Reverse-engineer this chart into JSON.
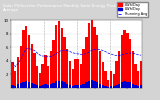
{
  "title": "Solar PV/Inverter Performance Monthly Solar Energy Production Running Average",
  "title_fontsize": 2.8,
  "bar_values": [
    3.8,
    2.5,
    4.5,
    6.2,
    8.5,
    9.1,
    7.8,
    6.5,
    5.1,
    3.2,
    2.2,
    3.5,
    4.8,
    3.2,
    5.5,
    7.1,
    9.2,
    9.8,
    8.8,
    7.5,
    5.8,
    3.9,
    2.8,
    4.2,
    4.2,
    3.5,
    5.8,
    7.5,
    9.5,
    10.1,
    9.0,
    7.8,
    5.5,
    3.8,
    2.5,
    1.2,
    2.5,
    2.0,
    4.0,
    5.5,
    7.8,
    8.5,
    8.1,
    7.2,
    5.5,
    3.5,
    2.5,
    4.0
  ],
  "small_values": [
    0.45,
    0.3,
    0.52,
    0.7,
    0.95,
    1.02,
    0.88,
    0.72,
    0.58,
    0.38,
    0.28,
    0.42,
    0.55,
    0.38,
    0.62,
    0.8,
    1.05,
    1.1,
    1.0,
    0.85,
    0.65,
    0.44,
    0.32,
    0.48,
    0.48,
    0.4,
    0.65,
    0.85,
    1.08,
    1.15,
    1.02,
    0.88,
    0.62,
    0.44,
    0.3,
    0.15,
    0.3,
    0.24,
    0.46,
    0.62,
    0.88,
    0.96,
    0.92,
    0.82,
    0.62,
    0.4,
    0.3,
    0.46
  ],
  "running_avg": [
    3.8,
    3.15,
    3.6,
    4.25,
    5.1,
    5.77,
    5.77,
    5.7,
    5.51,
    5.17,
    4.85,
    4.7,
    4.7,
    4.57,
    4.63,
    4.8,
    5.05,
    5.35,
    5.52,
    5.57,
    5.5,
    5.37,
    5.17,
    5.09,
    5.02,
    4.93,
    4.96,
    5.1,
    5.3,
    5.57,
    5.68,
    5.72,
    5.65,
    5.52,
    5.35,
    5.12,
    5.0,
    4.85,
    4.78,
    4.78,
    4.89,
    5.01,
    5.1,
    5.14,
    5.11,
    5.01,
    4.88,
    4.82
  ],
  "bar_color": "#ff0000",
  "small_bar_color": "#0000cc",
  "avg_line_color": "#0000ff",
  "background_color": "#d4d4d4",
  "plot_bg_color": "#ffffff",
  "grid_color": "#aaaaaa",
  "n_bars": 48,
  "ylim": [
    0,
    10
  ],
  "ytick_values": [
    2,
    4,
    6,
    8,
    10
  ],
  "ytick_labels": [
    "2",
    "4",
    "6",
    "8",
    "10"
  ],
  "tick_fontsize": 2.8,
  "legend_labels": [
    "kWh/Day",
    "kWh/Day",
    "Running Avg"
  ],
  "legend_colors": [
    "#ff0000",
    "#0000cc",
    "#0000ff"
  ],
  "legend_fontsize": 2.5,
  "header_color": "#404040"
}
